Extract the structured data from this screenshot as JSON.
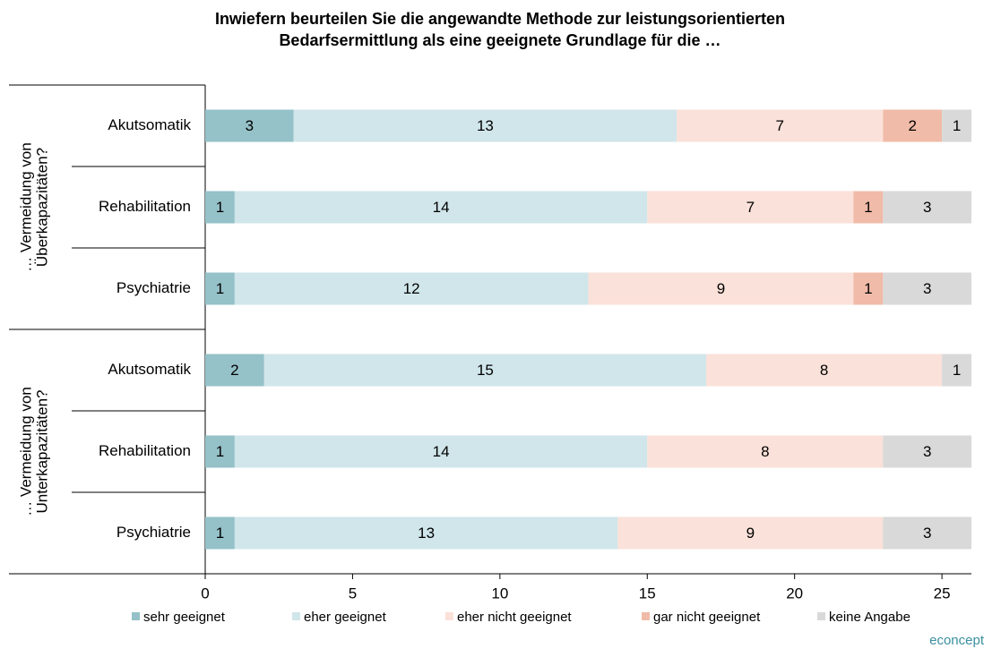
{
  "chart_data": {
    "type": "stacked_bar_horizontal",
    "title": [
      "Inwiefern beurteilen Sie die angewandte Methode zur leistungsorientierten",
      "Bedarfsermittlung als eine geeignete Grundlage  für die …"
    ],
    "groups": [
      {
        "label": [
          "… Vermeidung von",
          "Überkapazitäten?"
        ],
        "size": 3
      },
      {
        "label": [
          "… Vermeidung von",
          "Unterkapazitäten?"
        ],
        "size": 3
      }
    ],
    "categories": [
      "Akutsomatik",
      "Rehabilitation",
      "Psychiatrie",
      "Akutsomatik",
      "Rehabilitation",
      "Psychiatrie"
    ],
    "series": [
      {
        "name": "sehr geeignet",
        "color": "#95c1c8",
        "values": [
          3,
          1,
          1,
          2,
          1,
          1
        ]
      },
      {
        "name": "eher geeignet",
        "color": "#d0e6eb",
        "values": [
          13,
          14,
          12,
          15,
          14,
          13
        ]
      },
      {
        "name": "eher nicht geeignet",
        "color": "#fae1d9",
        "values": [
          7,
          7,
          9,
          8,
          8,
          9
        ]
      },
      {
        "name": "gar nicht geeignet",
        "color": "#f0bba8",
        "values": [
          2,
          1,
          1,
          null,
          null,
          null
        ]
      },
      {
        "name": "keine Angabe",
        "color": "#d9d9d9",
        "values": [
          1,
          3,
          3,
          1,
          3,
          3
        ]
      }
    ],
    "xlim": [
      0,
      26
    ],
    "xticks": [
      0,
      5,
      10,
      15,
      20,
      25
    ],
    "source": "econcept"
  }
}
